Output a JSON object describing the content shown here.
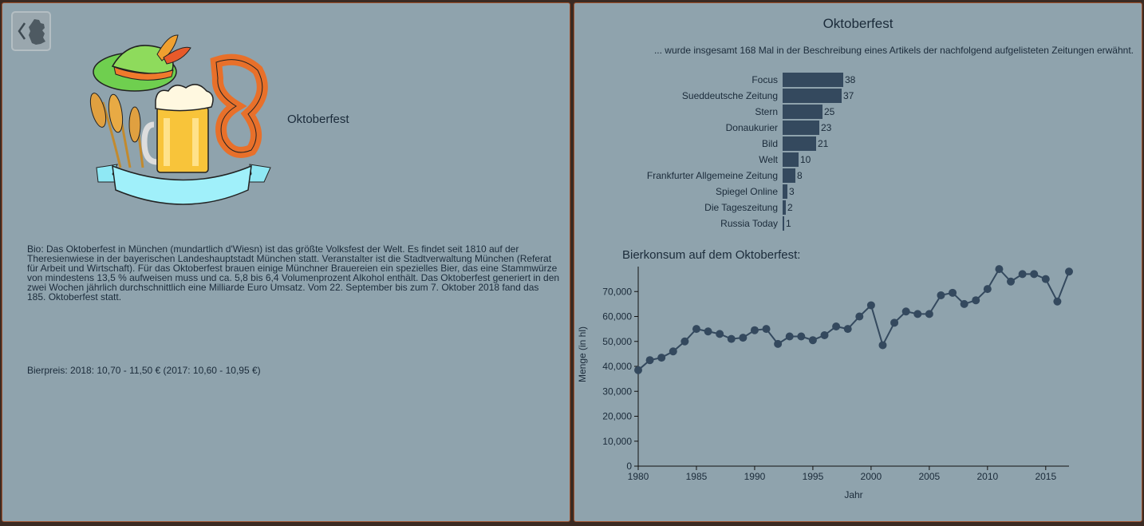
{
  "left": {
    "title": "Oktoberfest",
    "bio": "Bio: Das Oktoberfest in München (mundartlich d'Wiesn) ist das größte Volksfest der Welt. Es findet seit 1810 auf der Theresienwiese in der bayerischen Landeshauptstadt München statt. Veranstalter ist die Stadtverwaltung München (Referat für Arbeit und Wirtschaft). Für das Oktoberfest brauen einige Münchner Brauereien ein spezielles Bier, das eine Stammwürze von mindestens 13,5 % aufweisen muss und ca. 5,8 bis 6,4 Volumenprozent Alkohol enthält. Das Oktoberfest generiert in den zwei Wochen jährlich durchschnittlich eine Milliarde Euro Umsatz. Vom 22. September bis zum 7. Oktober 2018 fand das 185. Oktoberfest statt.",
    "price": "Bierpreis: 2018: 10,70 - 11,50 € (2017: 10,60 - 10,95 €)",
    "back_icon": "chevron-left-germany-map-icon",
    "illustration": "oktoberfest-hat-beer-pretzel-illustration"
  },
  "right": {
    "title": "Oktoberfest",
    "subtitle": "... wurde insgesamt 168 Mal in der Beschreibung eines Artikels der nachfolgend aufgelisteten Zeitungen erwähnt.",
    "line_title": "Bierkonsum auf dem Oktoberfest:"
  },
  "colors": {
    "panel": "#8fa3ad",
    "bar": "#34495e",
    "text": "#1b2b3a",
    "border": "#a0522d"
  },
  "chart_data": [
    {
      "type": "bar",
      "orientation": "horizontal",
      "categories": [
        "Focus",
        "Sueddeutsche Zeitung",
        "Stern",
        "Donaukurier",
        "Bild",
        "Welt",
        "Frankfurter Allgemeine Zeitung",
        "Spiegel Online",
        "Die Tageszeitung",
        "Russia Today"
      ],
      "values": [
        38,
        37,
        25,
        23,
        21,
        10,
        8,
        3,
        2,
        1
      ]
    },
    {
      "type": "line",
      "title": "Bierkonsum auf dem Oktoberfest:",
      "xlabel": "Jahr",
      "ylabel": "Menge (in hl)",
      "xlim": [
        1980,
        2017
      ],
      "ylim": [
        0,
        80000
      ],
      "xticks": [
        "1980",
        "1985",
        "1990",
        "1995",
        "2000",
        "2005",
        "2010",
        "2015"
      ],
      "yticks": [
        "0",
        "10,000",
        "20,000",
        "30,000",
        "40,000",
        "50,000",
        "60,000",
        "70,000"
      ],
      "x": [
        1980,
        1981,
        1982,
        1983,
        1984,
        1985,
        1986,
        1987,
        1988,
        1989,
        1990,
        1991,
        1992,
        1993,
        1994,
        1995,
        1996,
        1997,
        1998,
        1999,
        2000,
        2001,
        2002,
        2003,
        2004,
        2005,
        2006,
        2007,
        2008,
        2009,
        2010,
        2011,
        2012,
        2013,
        2014,
        2015,
        2016,
        2017
      ],
      "values": [
        38500,
        42500,
        43500,
        46000,
        50000,
        55000,
        54000,
        53000,
        51000,
        51500,
        54500,
        55000,
        49000,
        52000,
        52000,
        50500,
        52500,
        56000,
        55000,
        60000,
        64500,
        48500,
        57500,
        62000,
        61000,
        61000,
        68500,
        69500,
        65000,
        66500,
        71000,
        79000,
        74000,
        77000,
        77000,
        75000,
        66000,
        78000
      ]
    }
  ]
}
